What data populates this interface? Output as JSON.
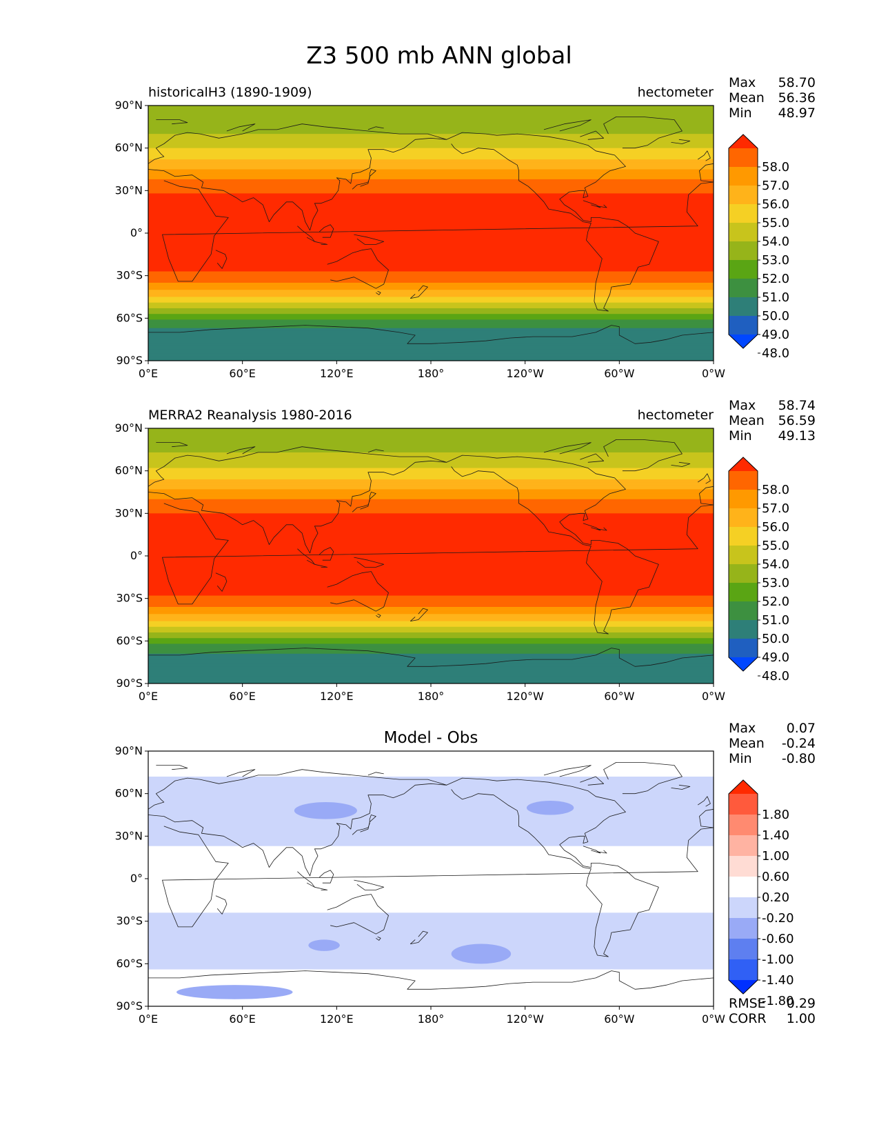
{
  "figure": {
    "title": "Z3 500 mb ANN global"
  },
  "axes": {
    "lon_labels": [
      "0°E",
      "60°E",
      "120°E",
      "180°",
      "120°W",
      "60°W",
      "0°W"
    ],
    "lat_labels": [
      "90°N",
      "60°N",
      "30°N",
      "0°",
      "30°S",
      "60°S",
      "90°S"
    ]
  },
  "chart_data": [
    {
      "type": "heatmap",
      "id": "test",
      "title_left": "historicalH3 (1890-1909)",
      "units": "hectometer",
      "stats": [
        {
          "label": "Max",
          "value": "58.70"
        },
        {
          "label": "Mean",
          "value": "56.36"
        },
        {
          "label": "Min",
          "value": "48.97"
        }
      ],
      "colorbar_labels": [
        "58.0",
        "57.0",
        "56.0",
        "55.0",
        "54.0",
        "53.0",
        "52.0",
        "51.0",
        "50.0",
        "49.0",
        "48.0"
      ],
      "colorbar_colors": [
        "#ff2a00",
        "#ff6600",
        "#ff9900",
        "#ffb31a",
        "#f5d024",
        "#c8c41c",
        "#96b41a",
        "#5aa514",
        "#3d9040",
        "#2e7f78",
        "#1f5fc0",
        "#0047ff"
      ],
      "bands": [
        {
          "lat": 90,
          "value": 52.2
        },
        {
          "lat": 75,
          "value": 52.5
        },
        {
          "lat": 65,
          "value": 53.5
        },
        {
          "lat": 55,
          "value": 54.5
        },
        {
          "lat": 45,
          "value": 56.0
        },
        {
          "lat": 35,
          "value": 57.4
        },
        {
          "lat": 25,
          "value": 58.3
        },
        {
          "lat": 0,
          "value": 58.6
        },
        {
          "lat": -25,
          "value": 58.3
        },
        {
          "lat": -35,
          "value": 57.0
        },
        {
          "lat": -45,
          "value": 55.0
        },
        {
          "lat": -55,
          "value": 52.5
        },
        {
          "lat": -63,
          "value": 50.5
        },
        {
          "lat": -70,
          "value": 49.5
        },
        {
          "lat": -90,
          "value": 49.4
        }
      ]
    },
    {
      "type": "heatmap",
      "id": "ref",
      "title_left": "MERRA2 Reanalysis 1980-2016",
      "units": "hectometer",
      "stats": [
        {
          "label": "Max",
          "value": "58.74"
        },
        {
          "label": "Mean",
          "value": "56.59"
        },
        {
          "label": "Min",
          "value": "49.13"
        }
      ],
      "colorbar_labels": [
        "58.0",
        "57.0",
        "56.0",
        "55.0",
        "54.0",
        "53.0",
        "52.0",
        "51.0",
        "50.0",
        "49.0",
        "48.0"
      ],
      "colorbar_colors": [
        "#ff2a00",
        "#ff6600",
        "#ff9900",
        "#ffb31a",
        "#f5d024",
        "#c8c41c",
        "#96b41a",
        "#5aa514",
        "#3d9040",
        "#2e7f78",
        "#1f5fc0",
        "#0047ff"
      ],
      "bands": [
        {
          "lat": 90,
          "value": 52.4
        },
        {
          "lat": 75,
          "value": 52.8
        },
        {
          "lat": 65,
          "value": 53.7
        },
        {
          "lat": 55,
          "value": 54.8
        },
        {
          "lat": 45,
          "value": 56.3
        },
        {
          "lat": 35,
          "value": 57.6
        },
        {
          "lat": 25,
          "value": 58.4
        },
        {
          "lat": 0,
          "value": 58.7
        },
        {
          "lat": -25,
          "value": 58.4
        },
        {
          "lat": -35,
          "value": 57.2
        },
        {
          "lat": -45,
          "value": 55.3
        },
        {
          "lat": -55,
          "value": 52.8
        },
        {
          "lat": -63,
          "value": 50.8
        },
        {
          "lat": -70,
          "value": 49.8
        },
        {
          "lat": -90,
          "value": 49.6
        }
      ]
    },
    {
      "type": "heatmap",
      "id": "diff",
      "title_center": "Model - Obs",
      "stats": [
        {
          "label": "Max",
          "value": "0.07"
        },
        {
          "label": "Mean",
          "value": "-0.24"
        },
        {
          "label": "Min",
          "value": "-0.80"
        }
      ],
      "colorbar_labels": [
        "1.80",
        "1.40",
        "1.00",
        "0.60",
        "0.20",
        "-0.20",
        "-0.60",
        "-1.00",
        "-1.40",
        "-1.80"
      ],
      "colorbar_colors": [
        "#ff2a00",
        "#ff5a3c",
        "#ff8a70",
        "#ffb3a2",
        "#ffdcd4",
        "#ffffff",
        "#ccd6fb",
        "#99aaf6",
        "#5e7ff0",
        "#3060f5",
        "#0030ff"
      ],
      "bands": [
        {
          "lat": 90,
          "value": 0.0
        },
        {
          "lat": 75,
          "value": -0.1
        },
        {
          "lat": 70,
          "value": -0.3
        },
        {
          "lat": 55,
          "value": -0.35
        },
        {
          "lat": 40,
          "value": -0.3
        },
        {
          "lat": 25,
          "value": -0.3
        },
        {
          "lat": 20,
          "value": -0.1
        },
        {
          "lat": -20,
          "value": -0.1
        },
        {
          "lat": -28,
          "value": -0.3
        },
        {
          "lat": -50,
          "value": -0.35
        },
        {
          "lat": -62,
          "value": -0.3
        },
        {
          "lat": -66,
          "value": -0.1
        },
        {
          "lat": -75,
          "value": -0.1
        },
        {
          "lat": -90,
          "value": 0.0
        }
      ],
      "blobs": [
        {
          "lon": 113,
          "lat": 48,
          "rlon": 20,
          "rlat": 6,
          "value": -0.7
        },
        {
          "lon": 256,
          "lat": 50,
          "rlon": 15,
          "rlat": 5,
          "value": -0.7
        },
        {
          "lon": 212,
          "lat": -53,
          "rlon": 19,
          "rlat": 7,
          "value": -0.7
        },
        {
          "lon": 112,
          "lat": -47,
          "rlon": 10,
          "rlat": 4,
          "value": -0.7
        },
        {
          "lon": 55,
          "lat": -80,
          "rlon": 37,
          "rlat": 5,
          "value": -0.7
        }
      ],
      "extra_stats": [
        {
          "label": "RMSE",
          "value": "0.29"
        },
        {
          "label": "CORR",
          "value": "1.00"
        }
      ]
    }
  ]
}
